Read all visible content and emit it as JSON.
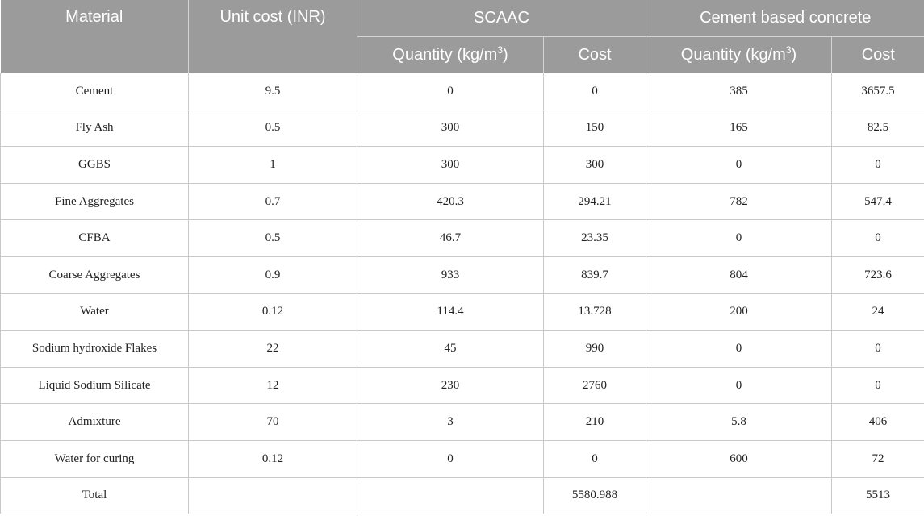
{
  "header": {
    "material": "Material",
    "unit_cost": "Unit cost (INR)",
    "group1": "SCAAC",
    "group2": "Cement based concrete",
    "quantity_label": "Quantity (kg/m",
    "quantity_sup": "3",
    "quantity_close": ")",
    "cost": "Cost"
  },
  "rows": [
    {
      "material": "Cement",
      "unit_cost": "9.5",
      "scaac_qty": "0",
      "scaac_cost": "0",
      "cbc_qty": "385",
      "cbc_cost": "3657.5"
    },
    {
      "material": "Fly Ash",
      "unit_cost": "0.5",
      "scaac_qty": "300",
      "scaac_cost": "150",
      "cbc_qty": "165",
      "cbc_cost": "82.5"
    },
    {
      "material": "GGBS",
      "unit_cost": "1",
      "scaac_qty": "300",
      "scaac_cost": "300",
      "cbc_qty": "0",
      "cbc_cost": "0"
    },
    {
      "material": "Fine Aggregates",
      "unit_cost": "0.7",
      "scaac_qty": "420.3",
      "scaac_cost": "294.21",
      "cbc_qty": "782",
      "cbc_cost": "547.4"
    },
    {
      "material": "CFBA",
      "unit_cost": "0.5",
      "scaac_qty": "46.7",
      "scaac_cost": "23.35",
      "cbc_qty": "0",
      "cbc_cost": "0"
    },
    {
      "material": "Coarse Aggregates",
      "unit_cost": "0.9",
      "scaac_qty": "933",
      "scaac_cost": "839.7",
      "cbc_qty": "804",
      "cbc_cost": "723.6"
    },
    {
      "material": "Water",
      "unit_cost": "0.12",
      "scaac_qty": "114.4",
      "scaac_cost": "13.728",
      "cbc_qty": "200",
      "cbc_cost": "24"
    },
    {
      "material": "Sodium hydroxide Flakes",
      "unit_cost": "22",
      "scaac_qty": "45",
      "scaac_cost": "990",
      "cbc_qty": "0",
      "cbc_cost": "0"
    },
    {
      "material": "Liquid Sodium Silicate",
      "unit_cost": "12",
      "scaac_qty": "230",
      "scaac_cost": "2760",
      "cbc_qty": "0",
      "cbc_cost": "0"
    },
    {
      "material": "Admixture",
      "unit_cost": "70",
      "scaac_qty": "3",
      "scaac_cost": "210",
      "cbc_qty": "5.8",
      "cbc_cost": "406"
    },
    {
      "material": "Water for curing",
      "unit_cost": "0.12",
      "scaac_qty": "0",
      "scaac_cost": "0",
      "cbc_qty": "600",
      "cbc_cost": "72"
    },
    {
      "material": "Total",
      "unit_cost": "",
      "scaac_qty": "",
      "scaac_cost": "5580.988",
      "cbc_qty": "",
      "cbc_cost": "5513"
    }
  ]
}
